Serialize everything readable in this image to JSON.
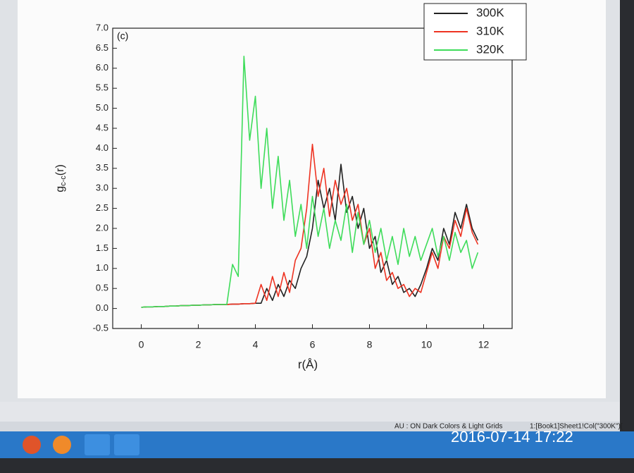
{
  "chart_data": {
    "type": "line",
    "panel_label": "(c)",
    "xlabel": "r(Å)",
    "ylabel": "g",
    "ylabel_sub": "c-c",
    "ylabel_tail": "(r)",
    "xlim": [
      -1,
      13
    ],
    "ylim": [
      -0.5,
      7.0
    ],
    "xticks": [
      0,
      2,
      4,
      6,
      8,
      10,
      12
    ],
    "yticks": [
      {
        "value": -0.5,
        "label": "-0.5"
      },
      {
        "value": 0,
        "label": "0.0"
      },
      0.5,
      {
        "value": 1,
        "label": "1.0"
      },
      1.5,
      {
        "value": 2,
        "label": "2.0"
      },
      2.5,
      {
        "value": 3,
        "label": "3.0"
      },
      3.5,
      {
        "value": 4,
        "label": "4.0"
      },
      4.5,
      {
        "value": 5,
        "label": "5.0"
      },
      5.5,
      {
        "value": 6,
        "label": "6.0"
      },
      6.5,
      {
        "value": 7,
        "label": "7.0"
      }
    ],
    "legend": "upper right",
    "x": [
      0,
      0.2,
      0.4,
      0.6,
      0.8,
      1.0,
      1.2,
      1.4,
      1.6,
      1.8,
      2.0,
      2.2,
      2.4,
      2.6,
      2.8,
      3.0,
      3.2,
      3.4,
      3.6,
      3.8,
      4.0,
      4.2,
      4.4,
      4.6,
      4.8,
      5.0,
      5.2,
      5.4,
      5.6,
      5.8,
      6.0,
      6.2,
      6.4,
      6.6,
      6.8,
      7.0,
      7.2,
      7.4,
      7.6,
      7.8,
      8.0,
      8.2,
      8.4,
      8.6,
      8.8,
      9.0,
      9.2,
      9.4,
      9.6,
      9.8,
      10.0,
      10.2,
      10.4,
      10.6,
      10.8,
      11.0,
      11.2,
      11.4,
      11.6,
      11.8
    ],
    "series": [
      {
        "name": "300K",
        "color": "#222222",
        "values": [
          0.03,
          0.04,
          0.04,
          0.05,
          0.05,
          0.06,
          0.06,
          0.07,
          0.07,
          0.08,
          0.08,
          0.09,
          0.09,
          0.1,
          0.1,
          0.1,
          0.11,
          0.11,
          0.12,
          0.12,
          0.13,
          0.13,
          0.5,
          0.2,
          0.6,
          0.3,
          0.7,
          0.5,
          1.0,
          1.3,
          2.0,
          3.2,
          2.5,
          3.0,
          2.2,
          3.6,
          2.4,
          2.8,
          2.0,
          2.5,
          1.5,
          1.8,
          0.9,
          1.2,
          0.6,
          0.8,
          0.4,
          0.5,
          0.3,
          0.6,
          1.0,
          1.5,
          1.2,
          2.0,
          1.6,
          2.4,
          2.0,
          2.6,
          2.0,
          1.7
        ]
      },
      {
        "name": "310K",
        "color": "#ee3322",
        "values": [
          0.03,
          0.04,
          0.04,
          0.05,
          0.05,
          0.06,
          0.06,
          0.07,
          0.07,
          0.08,
          0.08,
          0.09,
          0.09,
          0.1,
          0.1,
          0.1,
          0.11,
          0.11,
          0.12,
          0.12,
          0.13,
          0.6,
          0.2,
          0.8,
          0.3,
          0.9,
          0.4,
          1.2,
          1.5,
          2.5,
          4.1,
          2.8,
          3.5,
          2.3,
          3.2,
          2.6,
          3.0,
          2.2,
          2.6,
          1.6,
          2.0,
          1.0,
          1.4,
          0.7,
          0.9,
          0.5,
          0.6,
          0.3,
          0.5,
          0.4,
          0.9,
          1.4,
          1.0,
          1.8,
          1.5,
          2.2,
          1.8,
          2.5,
          1.9,
          1.6
        ]
      },
      {
        "name": "320K",
        "color": "#3edc5a",
        "values": [
          0.03,
          0.04,
          0.04,
          0.05,
          0.05,
          0.06,
          0.06,
          0.07,
          0.07,
          0.08,
          0.08,
          0.09,
          0.09,
          0.1,
          0.1,
          0.1,
          1.1,
          0.8,
          6.3,
          4.2,
          5.3,
          3.0,
          4.5,
          2.5,
          3.8,
          2.2,
          3.2,
          1.8,
          2.6,
          1.5,
          2.8,
          1.8,
          2.5,
          1.5,
          2.2,
          1.7,
          2.6,
          1.4,
          2.4,
          1.6,
          2.2,
          1.4,
          2.0,
          1.2,
          1.8,
          1.1,
          2.0,
          1.3,
          1.8,
          1.2,
          1.6,
          2.0,
          1.3,
          1.8,
          1.2,
          1.9,
          1.4,
          1.7,
          1.0,
          1.4
        ]
      }
    ]
  },
  "ui": {
    "status_mode": "AU : ON  Dark Colors & Light Grids",
    "status_cell": "1:[Book1]Sheet1!Col(\"300K\")[",
    "timestamp": "2016-07-14 17:22"
  }
}
